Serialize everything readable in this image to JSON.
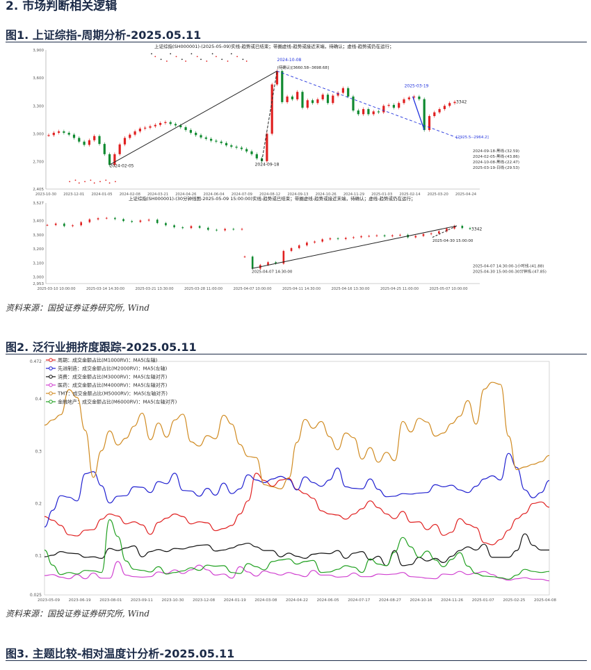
{
  "section": {
    "heading": "2. 市场判断相关逻辑"
  },
  "figures": [
    {
      "label": "图1. 上证综指-周期分析-2025.05.11",
      "source": "资料来源：国投证券证券研究所, Wind"
    },
    {
      "label": "图2. 泛行业拥挤度跟踪-2025.05.11",
      "source": "资料来源：国投证券证券研究所, Wind"
    },
    {
      "label": "图3. 主题比较-相对温度计分析-2025.05.11"
    }
  ],
  "chart_data": [
    {
      "type": "line",
      "title": "上证综指(SH000001)-(2025-05-09)实线-趋势或已结束；带圈虚线-趋势或接近末端，待确认；虚线-趋势或仍在运行；",
      "ylim": [
        2405,
        3900
      ],
      "y_ticks": [
        "2,405",
        "2,700",
        "3,000",
        "3,300",
        "3,600",
        "3,900"
      ],
      "x_ticks": [
        "2023-10-30",
        "2023-12-01",
        "2024-01-05",
        "2024-02-08",
        "2024-03-21",
        "2024-04-26",
        "2024-06-04",
        "2024-07-09",
        "2024-08-12",
        "2024-09-13",
        "2024-10-26",
        "2024-11-29",
        "2025-01-03",
        "2025-02-14",
        "2025-03-20",
        "2025-04-24"
      ],
      "series": [
        {
          "values": [
            2985,
            3010,
            3025,
            3010,
            2990,
            2955,
            2915,
            2880,
            2930,
            2975,
            2890,
            2780,
            2665,
            2780,
            2885,
            2955,
            2990,
            3025,
            3055,
            3065,
            3080,
            3095,
            3115,
            3125,
            3105,
            3090,
            3070,
            3040,
            3010,
            2985,
            2960,
            2945,
            2925,
            2915,
            2900,
            2875,
            2860,
            2850,
            2835,
            2810,
            2780,
            2735,
            2705,
            3000,
            3530,
            3674,
            3340,
            3400,
            3370,
            3450,
            3280,
            3360,
            3330,
            3370,
            3420,
            3330,
            3410,
            3440,
            3490,
            3400,
            3250,
            3210,
            3265,
            3210,
            3240,
            3230,
            3300,
            3310,
            3280,
            3330,
            3370,
            3390,
            3400,
            3372,
            3040,
            3190,
            3230,
            3265,
            3300,
            3330,
            3342
          ]
        }
      ],
      "annotations": [
        "2024-10-08",
        "(待确认)[3660.58--3698.68]",
        "2025-03-19",
        "3342",
        "2024-02-05",
        "2024-09-18",
        "[2925.5--2964.2]",
        "2024-09-18-黑线-(32.59)",
        "2024-02-05-黑线-(43.86)",
        "2024-10-08-黑线-(22.47)",
        "2025-03-19-日线-(29.53)"
      ]
    },
    {
      "type": "line",
      "title": "上证综指(SH000001)-(30分钟线图-2025-05-09 15:00:00)实线-趋势或已结束；带圈虚线-趋势或接近末端，待确认；虚线-趋势或仍在运行；",
      "ylim": [
        2953,
        3527
      ],
      "y_ticks": [
        "2,953",
        "3,000",
        "3,100",
        "3,200",
        "3,300",
        "3,400",
        "3,527"
      ],
      "x_ticks": [
        "2025-03-10 10:00:00",
        "2025-03-14 14:30:00",
        "2025-03-21 13:30:00",
        "2025-03-28 11:00:00",
        "2025-04-07 10:00:00",
        "2025-04-11 14:30:00",
        "2025-04-16 13:30:00",
        "2025-04-25 11:00:00",
        "2025-05-07 10:00:00"
      ],
      "series": [
        {
          "values": [
            3370,
            3380,
            3362,
            3368,
            3390,
            3410,
            3418,
            3420,
            3412,
            3398,
            3392,
            3402,
            3408,
            3384,
            3368,
            3354,
            3348,
            3362,
            3350,
            3336,
            3332,
            3342,
            3338,
            3342
          ]
        },
        {
          "values": [
            3145,
            3060,
            3085,
            3105,
            3095,
            3185,
            3205,
            3225,
            3245,
            3252,
            3268,
            3275,
            3270,
            3278,
            3283,
            3290,
            3292,
            3296,
            3290,
            3296,
            3300,
            3282,
            3292,
            3305,
            3310,
            3325,
            3345,
            3364,
            3348,
            3342
          ]
        }
      ],
      "annotations": [
        "3342",
        "2025-04-30 15:00:00",
        "2025-04-07 14:30:00",
        "2025-04-07 14:30:00-1小时线-(41.88)",
        "2025-04-30 15:00:00-30分钟线-(47.85)"
      ]
    },
    {
      "type": "line",
      "ylim": [
        0.025,
        0.472
      ],
      "y_ticks": [
        "0.025",
        "0.1",
        "0.2",
        "0.3",
        "0.4",
        "0.472"
      ],
      "x_ticks": [
        "2023-05-09",
        "2023-06-19",
        "2023-08-01",
        "2023-09-11",
        "2023-10-30",
        "2023-12-08",
        "2024-01-19",
        "2024-03-08",
        "2024-04-22",
        "2024-06-05",
        "2024-07-17",
        "2024-08-27",
        "2024-10-16",
        "2024-11-26",
        "2025-01-07",
        "2025-02-25",
        "2025-04-08"
      ],
      "series": [
        {
          "name": "周期：成交金额占比(M1000RV)：MA5(左轴)",
          "color": "#e02020",
          "values": [
            0.175,
            0.168,
            0.158,
            0.14,
            0.138,
            0.149,
            0.15,
            0.17,
            0.18,
            0.176,
            0.161,
            0.165,
            0.159,
            0.141,
            0.164,
            0.172,
            0.18,
            0.175,
            0.161,
            0.165,
            0.163,
            0.148,
            0.152,
            0.158,
            0.18,
            0.205,
            0.258,
            0.244,
            0.233,
            0.245,
            0.248,
            0.227,
            0.219,
            0.21,
            0.186,
            0.18,
            0.178,
            0.17,
            0.18,
            0.19,
            0.205,
            0.192,
            0.18,
            0.171,
            0.185,
            0.164,
            0.165,
            0.15,
            0.16,
            0.139,
            0.145,
            0.171,
            0.16,
            0.154,
            0.125,
            0.121,
            0.131,
            0.149,
            0.171,
            0.181,
            0.2,
            0.203,
            0.193
          ]
        },
        {
          "name": "先进制造：成交金额占比(M2000RV)：MA5(左轴)",
          "color": "#2020d0",
          "values": [
            0.155,
            0.187,
            0.215,
            0.212,
            0.205,
            0.257,
            0.261,
            0.234,
            0.201,
            0.214,
            0.215,
            0.232,
            0.231,
            0.221,
            0.242,
            0.238,
            0.258,
            0.225,
            0.224,
            0.214,
            0.229,
            0.216,
            0.239,
            0.219,
            0.228,
            0.255,
            0.245,
            0.24,
            0.247,
            0.252,
            0.246,
            0.226,
            0.251,
            0.24,
            0.233,
            0.245,
            0.268,
            0.232,
            0.229,
            0.228,
            0.247,
            0.227,
            0.213,
            0.214,
            0.219,
            0.218,
            0.22,
            0.221,
            0.236,
            0.232,
            0.235,
            0.226,
            0.221,
            0.233,
            0.247,
            0.253,
            0.245,
            0.296,
            0.269,
            0.226,
            0.211,
            0.221,
            0.244
          ]
        },
        {
          "name": "消费：成交金额占比(M3000RV)：MA5(左轴对齐)",
          "color": "#111111",
          "values": [
            0.098,
            0.101,
            0.108,
            0.105,
            0.104,
            0.097,
            0.098,
            0.095,
            0.114,
            0.11,
            0.115,
            0.119,
            0.098,
            0.108,
            0.112,
            0.108,
            0.114,
            0.113,
            0.117,
            0.12,
            0.121,
            0.109,
            0.111,
            0.115,
            0.121,
            0.124,
            0.117,
            0.11,
            0.11,
            0.098,
            0.105,
            0.099,
            0.095,
            0.103,
            0.105,
            0.104,
            0.11,
            0.095,
            0.105,
            0.108,
            0.092,
            0.099,
            0.081,
            0.11,
            0.081,
            0.083,
            0.097,
            0.09,
            0.095,
            0.087,
            0.099,
            0.11,
            0.117,
            0.111,
            0.122,
            0.097,
            0.097,
            0.097,
            0.11,
            0.142,
            0.12,
            0.111,
            0.111
          ]
        },
        {
          "name": "医药：成交金额占比(M4000RV)：MA5(左轴对齐)",
          "color": "#d040d0",
          "values": [
            0.062,
            0.064,
            0.059,
            0.056,
            0.064,
            0.056,
            0.067,
            0.057,
            0.057,
            0.089,
            0.063,
            0.06,
            0.059,
            0.06,
            0.069,
            0.066,
            0.073,
            0.066,
            0.073,
            0.082,
            0.073,
            0.063,
            0.065,
            0.057,
            0.079,
            0.069,
            0.061,
            0.071,
            0.067,
            0.063,
            0.068,
            0.064,
            0.06,
            0.072,
            0.063,
            0.063,
            0.059,
            0.06,
            0.067,
            0.06,
            0.06,
            0.065,
            0.064,
            0.065,
            0.068,
            0.06,
            0.059,
            0.057,
            0.056,
            0.065,
            0.064,
            0.07,
            0.064,
            0.067,
            0.07,
            0.064,
            0.057,
            0.053,
            0.056,
            0.058,
            0.055,
            0.055,
            0.052
          ]
        },
        {
          "name": "TMT：成交金额占比(M5000RV)：MA5(左轴对齐)",
          "color": "#d08a20",
          "values": [
            0.35,
            0.36,
            0.37,
            0.418,
            0.403,
            0.34,
            0.25,
            0.301,
            0.339,
            0.312,
            0.325,
            0.348,
            0.373,
            0.322,
            0.354,
            0.327,
            0.36,
            0.371,
            0.318,
            0.31,
            0.33,
            0.324,
            0.369,
            0.352,
            0.313,
            0.29,
            0.288,
            0.236,
            0.232,
            0.228,
            0.249,
            0.317,
            0.361,
            0.344,
            0.357,
            0.328,
            0.303,
            0.335,
            0.326,
            0.285,
            0.307,
            0.279,
            0.298,
            0.282,
            0.357,
            0.337,
            0.363,
            0.356,
            0.329,
            0.335,
            0.353,
            0.367,
            0.397,
            0.352,
            0.419,
            0.432,
            0.428,
            0.329,
            0.265,
            0.27,
            0.275,
            0.28,
            0.292
          ]
        },
        {
          "name": "金融地产：成交金额占比(M6000RV)：MA5(左轴对齐)",
          "color": "#20a020",
          "values": [
            0.111,
            0.082,
            0.064,
            0.068,
            0.065,
            0.072,
            0.071,
            0.068,
            0.169,
            0.137,
            0.09,
            0.074,
            0.072,
            0.069,
            0.079,
            0.065,
            0.068,
            0.071,
            0.077,
            0.072,
            0.082,
            0.08,
            0.081,
            0.068,
            0.066,
            0.085,
            0.079,
            0.073,
            0.089,
            0.092,
            0.094,
            0.084,
            0.089,
            0.091,
            0.068,
            0.069,
            0.074,
            0.081,
            0.078,
            0.068,
            0.094,
            0.084,
            0.081,
            0.107,
            0.135,
            0.117,
            0.097,
            0.109,
            0.092,
            0.079,
            0.093,
            0.106,
            0.08,
            0.066,
            0.061,
            0.06,
            0.058,
            0.055,
            0.063,
            0.074,
            0.07,
            0.068,
            0.07
          ]
        }
      ],
      "legend_position": "top-left"
    }
  ]
}
